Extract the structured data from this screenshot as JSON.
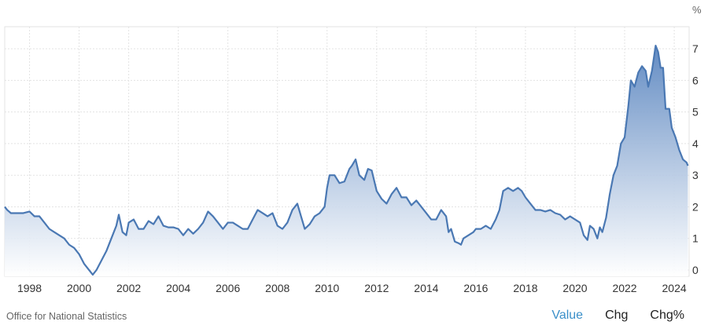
{
  "chart_data": {
    "type": "area",
    "unit_label": "%",
    "xlim": [
      1997.0,
      2024.6
    ],
    "ylim": [
      -0.2,
      7.7
    ],
    "y_ticks": [
      0,
      1,
      2,
      3,
      4,
      5,
      6,
      7
    ],
    "x_ticks": [
      1998,
      2000,
      2002,
      2004,
      2006,
      2008,
      2010,
      2012,
      2014,
      2016,
      2018,
      2020,
      2022,
      2024
    ],
    "grid": true,
    "colors": {
      "line": "#4a78b3",
      "fill_top": "#5b86c0",
      "fill_bottom": "#ffffff",
      "grid": "#e3e3e3"
    },
    "series": [
      {
        "points": [
          [
            1997.0,
            2.0
          ],
          [
            1997.1,
            1.9
          ],
          [
            1997.25,
            1.8
          ],
          [
            1997.5,
            1.8
          ],
          [
            1997.75,
            1.8
          ],
          [
            1998.0,
            1.85
          ],
          [
            1998.2,
            1.7
          ],
          [
            1998.4,
            1.7
          ],
          [
            1998.6,
            1.5
          ],
          [
            1998.8,
            1.3
          ],
          [
            1999.0,
            1.2
          ],
          [
            1999.2,
            1.1
          ],
          [
            1999.4,
            1.0
          ],
          [
            1999.6,
            0.8
          ],
          [
            1999.8,
            0.7
          ],
          [
            2000.0,
            0.5
          ],
          [
            2000.2,
            0.2
          ],
          [
            2000.4,
            0.0
          ],
          [
            2000.55,
            -0.15
          ],
          [
            2000.7,
            0.0
          ],
          [
            2000.9,
            0.3
          ],
          [
            2001.1,
            0.6
          ],
          [
            2001.3,
            1.0
          ],
          [
            2001.5,
            1.4
          ],
          [
            2001.6,
            1.75
          ],
          [
            2001.75,
            1.2
          ],
          [
            2001.9,
            1.1
          ],
          [
            2002.0,
            1.5
          ],
          [
            2002.2,
            1.6
          ],
          [
            2002.4,
            1.3
          ],
          [
            2002.6,
            1.3
          ],
          [
            2002.8,
            1.55
          ],
          [
            2003.0,
            1.45
          ],
          [
            2003.2,
            1.7
          ],
          [
            2003.4,
            1.4
          ],
          [
            2003.6,
            1.35
          ],
          [
            2003.8,
            1.35
          ],
          [
            2004.0,
            1.3
          ],
          [
            2004.2,
            1.1
          ],
          [
            2004.4,
            1.3
          ],
          [
            2004.6,
            1.15
          ],
          [
            2004.8,
            1.3
          ],
          [
            2005.0,
            1.5
          ],
          [
            2005.2,
            1.85
          ],
          [
            2005.4,
            1.7
          ],
          [
            2005.6,
            1.5
          ],
          [
            2005.8,
            1.3
          ],
          [
            2006.0,
            1.5
          ],
          [
            2006.2,
            1.5
          ],
          [
            2006.4,
            1.4
          ],
          [
            2006.6,
            1.3
          ],
          [
            2006.8,
            1.3
          ],
          [
            2007.0,
            1.6
          ],
          [
            2007.2,
            1.9
          ],
          [
            2007.4,
            1.8
          ],
          [
            2007.6,
            1.7
          ],
          [
            2007.8,
            1.8
          ],
          [
            2008.0,
            1.4
          ],
          [
            2008.2,
            1.3
          ],
          [
            2008.4,
            1.5
          ],
          [
            2008.6,
            1.9
          ],
          [
            2008.8,
            2.1
          ],
          [
            2008.95,
            1.7
          ],
          [
            2009.1,
            1.3
          ],
          [
            2009.3,
            1.45
          ],
          [
            2009.5,
            1.7
          ],
          [
            2009.7,
            1.8
          ],
          [
            2009.9,
            2.0
          ],
          [
            2010.0,
            2.6
          ],
          [
            2010.1,
            3.0
          ],
          [
            2010.3,
            3.0
          ],
          [
            2010.5,
            2.75
          ],
          [
            2010.7,
            2.8
          ],
          [
            2010.9,
            3.2
          ],
          [
            2011.0,
            3.3
          ],
          [
            2011.15,
            3.5
          ],
          [
            2011.3,
            3.0
          ],
          [
            2011.5,
            2.85
          ],
          [
            2011.65,
            3.2
          ],
          [
            2011.8,
            3.15
          ],
          [
            2012.0,
            2.5
          ],
          [
            2012.2,
            2.25
          ],
          [
            2012.4,
            2.1
          ],
          [
            2012.6,
            2.4
          ],
          [
            2012.8,
            2.6
          ],
          [
            2013.0,
            2.3
          ],
          [
            2013.2,
            2.3
          ],
          [
            2013.4,
            2.05
          ],
          [
            2013.6,
            2.2
          ],
          [
            2013.8,
            2.0
          ],
          [
            2014.0,
            1.8
          ],
          [
            2014.2,
            1.6
          ],
          [
            2014.4,
            1.6
          ],
          [
            2014.6,
            1.9
          ],
          [
            2014.8,
            1.7
          ],
          [
            2014.9,
            1.2
          ],
          [
            2015.0,
            1.3
          ],
          [
            2015.15,
            0.9
          ],
          [
            2015.3,
            0.85
          ],
          [
            2015.4,
            0.8
          ],
          [
            2015.5,
            1.0
          ],
          [
            2015.7,
            1.1
          ],
          [
            2015.9,
            1.2
          ],
          [
            2016.0,
            1.3
          ],
          [
            2016.2,
            1.3
          ],
          [
            2016.4,
            1.4
          ],
          [
            2016.6,
            1.3
          ],
          [
            2016.8,
            1.6
          ],
          [
            2016.95,
            1.9
          ],
          [
            2017.1,
            2.5
          ],
          [
            2017.3,
            2.6
          ],
          [
            2017.5,
            2.5
          ],
          [
            2017.7,
            2.6
          ],
          [
            2017.85,
            2.5
          ],
          [
            2018.0,
            2.3
          ],
          [
            2018.2,
            2.1
          ],
          [
            2018.4,
            1.9
          ],
          [
            2018.6,
            1.9
          ],
          [
            2018.8,
            1.85
          ],
          [
            2019.0,
            1.9
          ],
          [
            2019.2,
            1.8
          ],
          [
            2019.4,
            1.75
          ],
          [
            2019.6,
            1.6
          ],
          [
            2019.8,
            1.7
          ],
          [
            2020.0,
            1.6
          ],
          [
            2020.2,
            1.5
          ],
          [
            2020.35,
            1.1
          ],
          [
            2020.5,
            0.95
          ],
          [
            2020.6,
            1.4
          ],
          [
            2020.75,
            1.3
          ],
          [
            2020.9,
            1.0
          ],
          [
            2021.0,
            1.35
          ],
          [
            2021.1,
            1.2
          ],
          [
            2021.25,
            1.65
          ],
          [
            2021.4,
            2.4
          ],
          [
            2021.55,
            3.0
          ],
          [
            2021.7,
            3.3
          ],
          [
            2021.85,
            4.0
          ],
          [
            2022.0,
            4.2
          ],
          [
            2022.15,
            5.2
          ],
          [
            2022.25,
            6.0
          ],
          [
            2022.4,
            5.8
          ],
          [
            2022.55,
            6.25
          ],
          [
            2022.7,
            6.45
          ],
          [
            2022.85,
            6.3
          ],
          [
            2022.95,
            5.8
          ],
          [
            2023.1,
            6.3
          ],
          [
            2023.25,
            7.1
          ],
          [
            2023.35,
            6.9
          ],
          [
            2023.45,
            6.4
          ],
          [
            2023.55,
            6.4
          ],
          [
            2023.65,
            5.1
          ],
          [
            2023.8,
            5.1
          ],
          [
            2023.9,
            4.5
          ],
          [
            2024.05,
            4.2
          ],
          [
            2024.2,
            3.8
          ],
          [
            2024.35,
            3.5
          ],
          [
            2024.5,
            3.4
          ],
          [
            2024.55,
            3.3
          ]
        ]
      }
    ]
  },
  "footer": {
    "source": "Office for National Statistics",
    "tabs": [
      {
        "label": "Value",
        "active": true
      },
      {
        "label": "Chg",
        "active": false
      },
      {
        "label": "Chg%",
        "active": false
      }
    ]
  }
}
